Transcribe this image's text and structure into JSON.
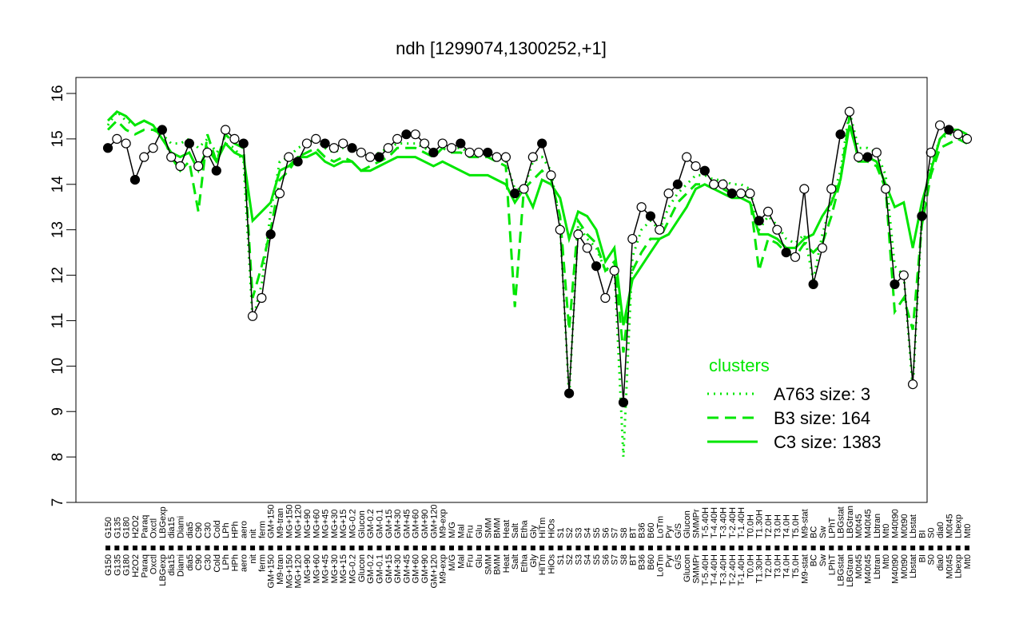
{
  "chart_data": {
    "type": "line",
    "title": "ndh [1299074,1300252,+1]",
    "xlabel": "",
    "ylabel": "",
    "ylim": [
      7,
      16
    ],
    "yticks": [
      7,
      8,
      9,
      10,
      11,
      12,
      13,
      14,
      15,
      16
    ],
    "grid": false,
    "categories_top": [
      "G150",
      "G135",
      "G180",
      "H2O2",
      "Paraq",
      "Oxctl",
      "LBGexp",
      "dia15",
      "Diami",
      "dia5",
      "C90",
      "C30",
      "Cold",
      "LPh",
      "HPh",
      "aero",
      "nit",
      "ferm",
      "GM+150",
      "M9-tran",
      "MG+150",
      "MG+120",
      "MG+90",
      "MG+60",
      "MG+45",
      "MG+30",
      "MG+15",
      "MG-0.2",
      "Glucon",
      "GM-0.2",
      "GM-0.1",
      "GM+15",
      "GM+30",
      "GM+45",
      "GM+60",
      "GM+90",
      "GM+120",
      "M9-exp",
      "M/G",
      "Mal",
      "Fru",
      "Glu",
      "SMM",
      "BMM",
      "Heat",
      "Salt",
      "Etha",
      "Gly",
      "HiTm",
      "HiOs",
      "S1",
      "S2",
      "S3",
      "S4",
      "S5",
      "S6",
      "S7",
      "S8",
      "BT",
      "B36",
      "B60",
      "LoTm",
      "Pyr",
      "G/S",
      "Glucon",
      "SMMPr",
      "T-5.40H",
      "T-4.40H",
      "T-3.40H",
      "T-2.40H",
      "T-1.40H",
      "T0.0H",
      "T1.30H",
      "T2.0H",
      "T3.0H",
      "T4.0H",
      "T5.0H",
      "M9-stat",
      "BC",
      "Sw",
      "LPhT",
      "LBGstat",
      "LBGtran",
      "M0t45",
      "M40t45",
      "Lbtran",
      "Mt0",
      "M40t90",
      "M0t90",
      "Lbstat",
      "BI",
      "S0",
      "dia0",
      "M0t45",
      "Lbexp",
      "Mt0"
    ],
    "series": [
      {
        "name": "A763 size: 3",
        "style": "dotted",
        "color": "#00e600",
        "values": [
          15.3,
          15.6,
          15.4,
          15.3,
          15.4,
          15.3,
          15.1,
          14.9,
          14.9,
          15.0,
          14.8,
          15.0,
          14.7,
          14.9,
          14.8,
          14.5,
          11.0,
          11.8,
          13.4,
          14.5,
          14.6,
          14.8,
          14.9,
          15.0,
          14.8,
          14.7,
          14.8,
          14.8,
          14.7,
          14.6,
          14.7,
          14.8,
          14.9,
          14.9,
          14.9,
          14.8,
          14.7,
          14.9,
          14.8,
          14.8,
          14.7,
          14.7,
          14.7,
          14.6,
          14.5,
          13.9,
          13.9,
          14.5,
          14.6,
          14.3,
          13.1,
          9.3,
          13.1,
          12.8,
          12.6,
          12.1,
          12.2,
          8.0,
          12.4,
          13.0,
          13.2,
          13.0,
          13.5,
          13.8,
          14.0,
          14.2,
          14.2,
          14.1,
          14.1,
          14.0,
          14.0,
          13.9,
          13.0,
          13.3,
          13.1,
          12.8,
          12.7,
          12.9,
          11.9,
          12.9,
          13.6,
          14.3,
          15.6,
          14.8,
          14.8,
          14.7,
          14.2,
          12.2,
          12.0,
          9.5,
          13.3,
          14.4,
          15.0,
          15.1,
          15.1,
          15.0
        ]
      },
      {
        "name": "B3 size: 164",
        "style": "dashed",
        "color": "#00e600",
        "values": [
          15.2,
          15.4,
          15.2,
          15.1,
          15.2,
          15.2,
          15.1,
          14.6,
          14.3,
          14.5,
          13.4,
          15.1,
          14.5,
          15.1,
          14.9,
          14.8,
          11.5,
          12.2,
          13.0,
          14.1,
          14.3,
          14.6,
          14.7,
          14.8,
          14.6,
          14.5,
          14.6,
          14.5,
          14.3,
          14.4,
          14.5,
          14.6,
          14.8,
          14.8,
          14.8,
          14.7,
          14.6,
          14.8,
          14.7,
          14.7,
          14.6,
          14.6,
          14.6,
          14.5,
          14.4,
          11.3,
          13.9,
          14.1,
          14.3,
          14.1,
          13.3,
          10.8,
          13.2,
          12.9,
          12.7,
          12.1,
          12.3,
          10.3,
          12.1,
          12.5,
          12.8,
          12.8,
          13.2,
          13.6,
          13.8,
          14.0,
          14.0,
          13.9,
          13.9,
          13.8,
          13.8,
          13.7,
          12.1,
          12.8,
          12.7,
          12.5,
          12.4,
          12.7,
          12.5,
          12.7,
          13.3,
          14.1,
          15.5,
          14.5,
          14.5,
          14.4,
          13.9,
          11.2,
          11.5,
          10.8,
          13.1,
          14.2,
          14.8,
          14.9,
          15.0,
          14.9
        ]
      },
      {
        "name": "C3 size: 1383",
        "style": "solid",
        "color": "#00e600",
        "values": [
          15.4,
          15.6,
          15.5,
          15.3,
          15.4,
          15.3,
          15.0,
          14.7,
          14.6,
          14.7,
          14.3,
          14.8,
          14.5,
          14.9,
          14.7,
          14.6,
          13.2,
          13.4,
          13.6,
          14.3,
          14.4,
          14.6,
          14.6,
          14.7,
          14.5,
          14.4,
          14.5,
          14.5,
          14.3,
          14.3,
          14.4,
          14.5,
          14.6,
          14.6,
          14.6,
          14.5,
          14.4,
          14.5,
          14.4,
          14.3,
          14.2,
          14.2,
          14.2,
          14.1,
          14.0,
          13.6,
          13.9,
          13.5,
          14.1,
          14.0,
          13.7,
          12.8,
          13.4,
          13.3,
          13.0,
          12.3,
          12.6,
          10.9,
          11.9,
          12.2,
          12.5,
          12.8,
          12.9,
          13.2,
          13.5,
          13.9,
          14.0,
          13.9,
          13.8,
          13.7,
          13.7,
          13.6,
          12.9,
          12.9,
          12.8,
          12.6,
          12.6,
          12.8,
          12.9,
          13.3,
          13.6,
          14.1,
          15.3,
          14.6,
          14.6,
          14.5,
          14.0,
          13.5,
          13.6,
          12.6,
          13.6,
          14.3,
          15.0,
          15.2,
          15.2,
          15.1
        ]
      },
      {
        "name": "observations",
        "style": "points",
        "color": "#000000",
        "values": [
          14.8,
          15.0,
          14.9,
          14.1,
          14.6,
          14.8,
          15.2,
          14.6,
          14.4,
          14.9,
          14.4,
          14.7,
          14.3,
          15.2,
          15.0,
          14.9,
          11.1,
          11.5,
          12.9,
          13.8,
          14.6,
          14.5,
          14.9,
          15.0,
          14.9,
          14.8,
          14.9,
          14.8,
          14.7,
          14.6,
          14.6,
          14.8,
          15.0,
          15.1,
          15.1,
          14.9,
          14.7,
          14.9,
          14.8,
          14.9,
          14.7,
          14.7,
          14.7,
          14.6,
          14.6,
          13.8,
          13.9,
          14.6,
          14.9,
          14.2,
          13.0,
          9.4,
          12.9,
          12.6,
          12.2,
          11.5,
          12.1,
          9.2,
          12.8,
          13.5,
          13.3,
          13.0,
          13.8,
          14.0,
          14.6,
          14.4,
          14.3,
          14.0,
          14.0,
          13.8,
          13.8,
          13.8,
          13.2,
          13.4,
          13.0,
          12.5,
          12.4,
          13.9,
          11.8,
          12.6,
          13.9,
          15.1,
          15.6,
          14.6,
          14.6,
          14.7,
          13.9,
          11.8,
          12.0,
          9.6,
          13.3,
          14.7,
          15.3,
          15.2,
          15.1,
          15.0
        ]
      }
    ],
    "legend": {
      "title": "clusters",
      "placement": "bottom-right",
      "entries": [
        "A763 size: 3",
        "B3 size: 164",
        "C3 size: 1383"
      ]
    }
  }
}
